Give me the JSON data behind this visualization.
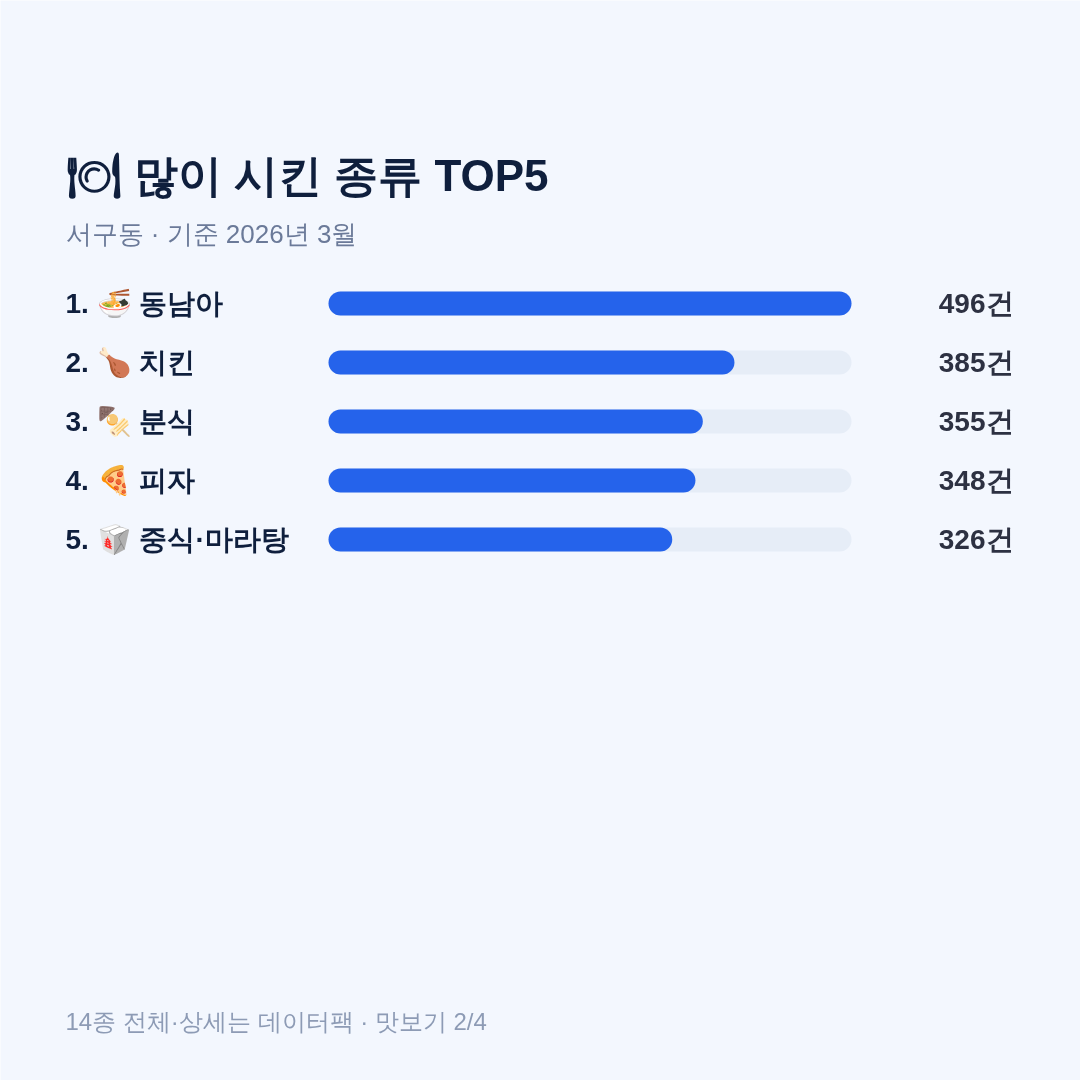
{
  "chart_data": {
    "type": "bar",
    "orientation": "horizontal",
    "title": "🍽 많이 시킨 종류 TOP5",
    "subtitle": "서구동 · 기준 2026년 3월",
    "categories": [
      "1. 🍜 동남아",
      "2. 🍗 치킨",
      "3. 🍢 분식",
      "4. 🍕 피자",
      "5. 🥡 중식·마라탕"
    ],
    "values": [
      496,
      385,
      355,
      348,
      326
    ],
    "color": "#2563eb",
    "value_labels": [
      "496건",
      "385건",
      "355건",
      "348건",
      "326건"
    ],
    "annotations": [
      "14종 전체·상세는 데이터팩 · 맛보기 2/4"
    ]
  }
}
